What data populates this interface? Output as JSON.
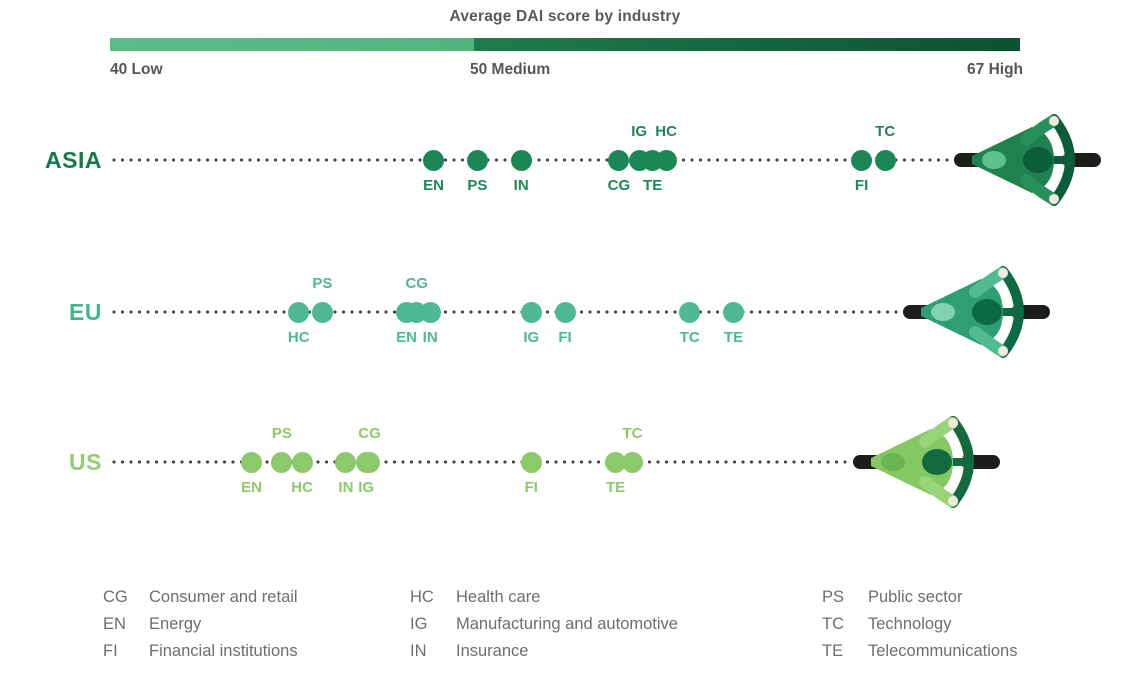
{
  "colors": {
    "background": "#ffffff",
    "title_text": "#58595b",
    "tick_text": "#55565a",
    "legend_text": "#6d6e71",
    "dotted_line": "#424242",
    "wheel": "#1d1d1b",
    "hand": "#f1e9dc",
    "red_accent": "#d2413c"
  },
  "chart_data": {
    "type": "scatter",
    "title": "Average DAI score by industry",
    "x_axis": {
      "min": 40,
      "max": 67,
      "ticks": [
        {
          "value": 40,
          "label": "40 Low"
        },
        {
          "value": 50,
          "label": "50 Medium"
        },
        {
          "value": 67,
          "label": "67 High"
        }
      ],
      "segments": [
        {
          "from": 40,
          "to": 50,
          "color_start": "#5cbc86",
          "color_end": "#53b47c"
        },
        {
          "from": 50,
          "to": 67,
          "color_start": "#1f7c4d",
          "color_end": "#0b5131"
        }
      ]
    },
    "series": [
      {
        "name": "ASIA",
        "color": "#1c8655",
        "label_color": "#147a4d",
        "rider": {
          "score": 67.2,
          "colors": {
            "body": "#1f8152",
            "arms": "#27905c",
            "dark": "#0b5c38",
            "seat": "#5fc08f"
          }
        },
        "points": [
          {
            "industry": "EN",
            "score": 49.6,
            "label": "below"
          },
          {
            "industry": "PS",
            "score": 50.9,
            "label": "below"
          },
          {
            "industry": "IN",
            "score": 52.2,
            "label": "below"
          },
          {
            "industry": "CG",
            "score": 55.1,
            "label": "below"
          },
          {
            "industry": "IG",
            "score": 55.7,
            "label": "above"
          },
          {
            "industry": "TE",
            "score": 56.1,
            "label": "below"
          },
          {
            "industry": "HC",
            "score": 56.5,
            "label": "above"
          },
          {
            "industry": "FI",
            "score": 62.3,
            "label": "below"
          },
          {
            "industry": "TC",
            "score": 63.0,
            "label": "above"
          }
        ]
      },
      {
        "name": "EU",
        "color": "#4db892",
        "label_color": "#45b58d",
        "rider": {
          "score": 65.7,
          "colors": {
            "body": "#2f9e74",
            "arms": "#52bb92",
            "dark": "#0c6a45",
            "seat": "#7fd3ae"
          }
        },
        "points": [
          {
            "industry": "HC",
            "score": 45.6,
            "label": "below"
          },
          {
            "industry": "PS",
            "score": 46.3,
            "label": "above"
          },
          {
            "industry": "EN",
            "score": 48.8,
            "label": "below"
          },
          {
            "industry": "CG",
            "score": 49.1,
            "label": "above"
          },
          {
            "industry": "IN",
            "score": 49.5,
            "label": "below"
          },
          {
            "industry": "IG",
            "score": 52.5,
            "label": "below"
          },
          {
            "industry": "FI",
            "score": 53.5,
            "label": "below"
          },
          {
            "industry": "TC",
            "score": 57.2,
            "label": "below"
          },
          {
            "industry": "TE",
            "score": 58.5,
            "label": "below"
          }
        ]
      },
      {
        "name": "US",
        "color": "#8bc96a",
        "label_color": "#93cc71",
        "rider": {
          "score": 64.2,
          "colors": {
            "body": "#84c862",
            "arms": "#9ad479",
            "dark": "#15693f",
            "seat": "#6ab552"
          }
        },
        "points": [
          {
            "industry": "EN",
            "score": 44.2,
            "label": "below"
          },
          {
            "industry": "PS",
            "score": 45.1,
            "label": "above"
          },
          {
            "industry": "HC",
            "score": 45.7,
            "label": "below"
          },
          {
            "industry": "IN",
            "score": 47.0,
            "label": "below"
          },
          {
            "industry": "IG",
            "score": 47.6,
            "label": "below"
          },
          {
            "industry": "CG",
            "score": 47.7,
            "label": "above"
          },
          {
            "industry": "FI",
            "score": 52.5,
            "label": "below"
          },
          {
            "industry": "TE",
            "score": 55.0,
            "label": "below"
          },
          {
            "industry": "TC",
            "score": 55.5,
            "label": "above"
          }
        ]
      }
    ]
  },
  "legend": {
    "columns": [
      {
        "items": [
          {
            "abbr": "CG",
            "name": "Consumer and retail"
          },
          {
            "abbr": "EN",
            "name": "Energy"
          },
          {
            "abbr": "FI",
            "name": "Financial institutions"
          }
        ]
      },
      {
        "items": [
          {
            "abbr": "HC",
            "name": "Health care"
          },
          {
            "abbr": "IG",
            "name": "Manufacturing and automotive"
          },
          {
            "abbr": "IN",
            "name": "Insurance"
          }
        ]
      },
      {
        "items": [
          {
            "abbr": "PS",
            "name": "Public sector"
          },
          {
            "abbr": "TC",
            "name": "Technology"
          },
          {
            "abbr": "TE",
            "name": "Telecommunications"
          }
        ]
      }
    ]
  }
}
